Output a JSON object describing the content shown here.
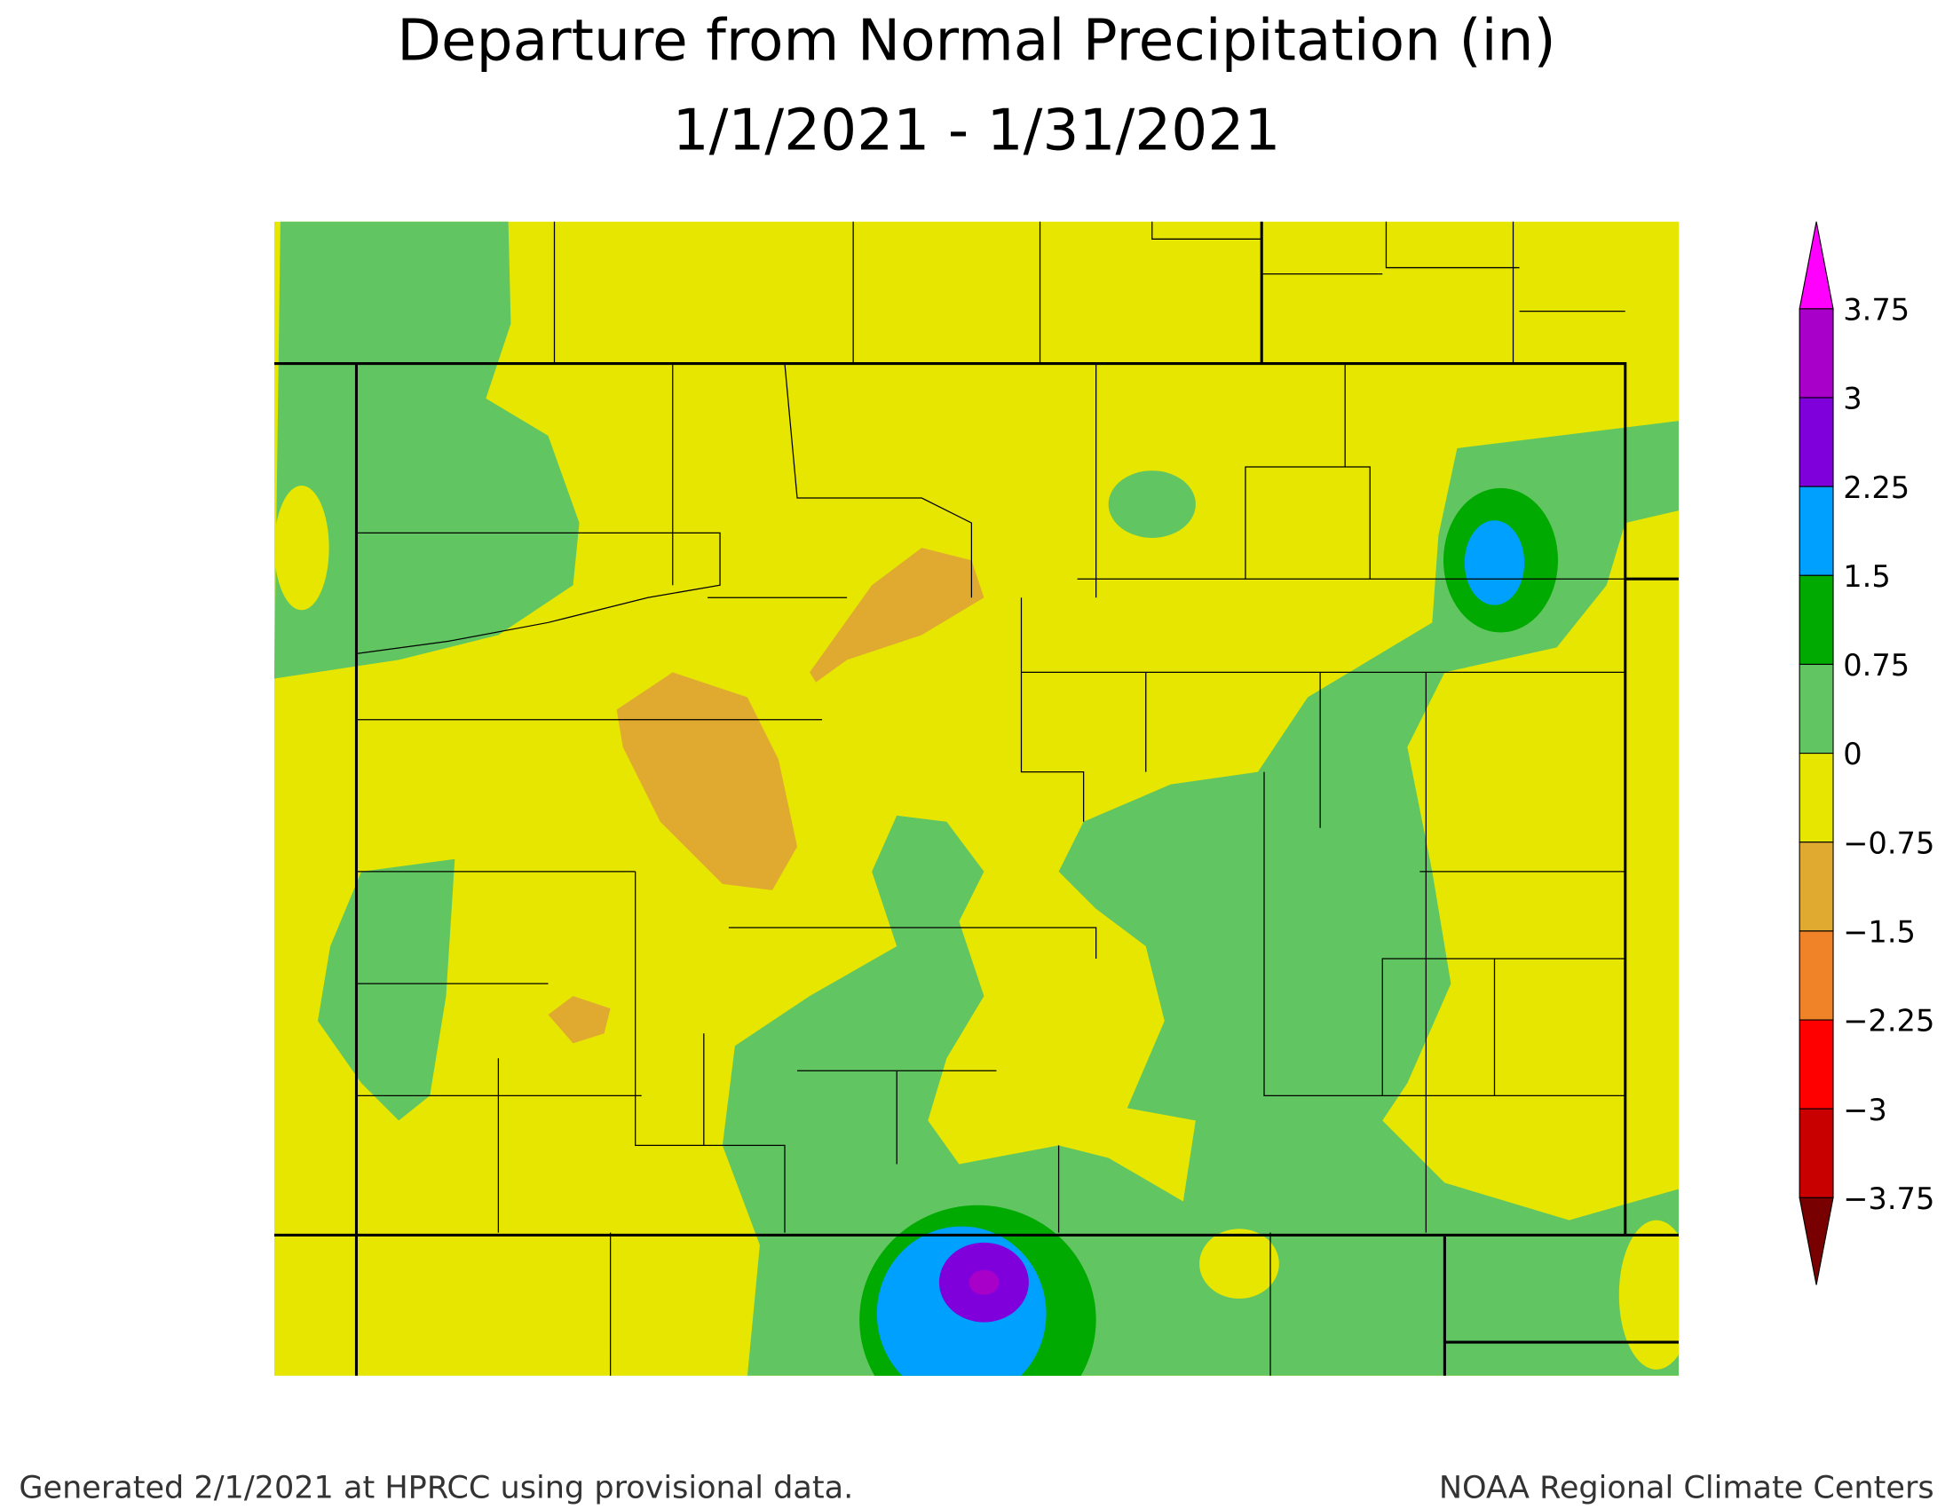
{
  "header": {
    "title": "Departure from Normal Precipitation (in)",
    "period": "1/1/2021 - 1/31/2021"
  },
  "legend": {
    "ticks": [
      "3.75",
      "3",
      "2.25",
      "1.5",
      "0.75",
      "0",
      "−0.75",
      "−1.5",
      "−2.25",
      "−3",
      "−3.75"
    ],
    "colors": [
      "#a800c8",
      "#8000dc",
      "#00a0ff",
      "#00aa00",
      "#61c661",
      "#e6e600",
      "#e0aa30",
      "#f08228",
      "#ff0000",
      "#c80000"
    ],
    "over_color": "#ff00ff",
    "under_color": "#780000"
  },
  "footer": {
    "left": "Generated 2/1/2021 at HPRCC using provisional data.",
    "right": "NOAA Regional Climate Centers"
  }
}
